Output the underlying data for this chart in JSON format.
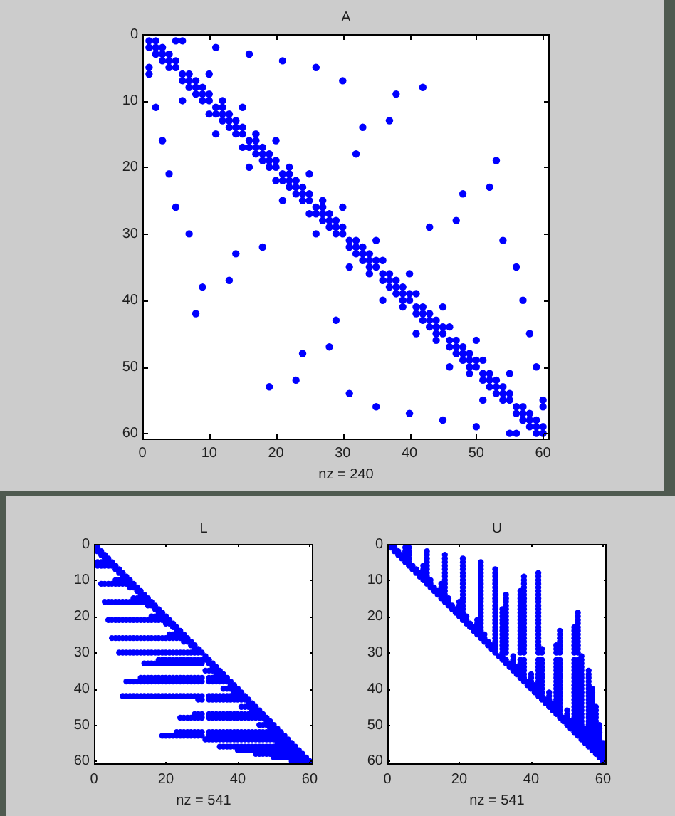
{
  "chart_data": [
    {
      "type": "scatter",
      "title": "A",
      "xlabel": "nz = 240",
      "color": "#0000ff",
      "marker": "circle",
      "xlim": [
        0,
        61
      ],
      "ylim": [
        61,
        0
      ],
      "xticks": [
        0,
        10,
        20,
        30,
        40,
        50,
        60
      ],
      "yticks": [
        0,
        10,
        20,
        30,
        40,
        50,
        60
      ],
      "x": [
        1,
        1,
        1,
        1,
        2,
        2,
        2,
        2,
        3,
        3,
        3,
        3,
        4,
        4,
        4,
        4,
        5,
        5,
        5,
        5,
        6,
        6,
        6,
        6,
        7,
        7,
        7,
        7,
        8,
        8,
        8,
        8,
        9,
        9,
        9,
        9,
        10,
        10,
        10,
        10,
        11,
        11,
        11,
        11,
        12,
        12,
        12,
        12,
        13,
        13,
        13,
        13,
        14,
        14,
        14,
        14,
        15,
        15,
        15,
        15,
        16,
        16,
        16,
        16,
        17,
        17,
        17,
        17,
        18,
        18,
        18,
        18,
        19,
        19,
        19,
        19,
        20,
        20,
        20,
        20,
        21,
        21,
        21,
        21,
        22,
        22,
        22,
        22,
        23,
        23,
        23,
        23,
        24,
        24,
        24,
        24,
        25,
        25,
        25,
        25,
        26,
        26,
        26,
        26,
        27,
        27,
        27,
        27,
        28,
        28,
        28,
        28,
        29,
        29,
        29,
        29,
        30,
        30,
        30,
        30,
        31,
        31,
        31,
        31,
        32,
        32,
        32,
        32,
        33,
        33,
        33,
        33,
        34,
        34,
        34,
        34,
        35,
        35,
        35,
        35,
        36,
        36,
        36,
        36,
        37,
        37,
        37,
        37,
        38,
        38,
        38,
        38,
        39,
        39,
        39,
        39,
        40,
        40,
        40,
        40,
        41,
        41,
        41,
        41,
        42,
        42,
        42,
        42,
        43,
        43,
        43,
        43,
        44,
        44,
        44,
        44,
        45,
        45,
        45,
        45,
        46,
        46,
        46,
        46,
        47,
        47,
        47,
        47,
        48,
        48,
        48,
        48,
        49,
        49,
        49,
        49,
        50,
        50,
        50,
        50,
        51,
        51,
        51,
        51,
        52,
        52,
        52,
        52,
        53,
        53,
        53,
        53,
        54,
        54,
        54,
        54,
        55,
        55,
        55,
        55,
        56,
        56,
        56,
        56,
        57,
        57,
        57,
        57,
        58,
        58,
        58,
        58,
        59,
        59,
        59,
        59,
        60,
        60,
        60,
        60
      ],
      "values": [
        1,
        2,
        5,
        6,
        1,
        2,
        3,
        11,
        2,
        3,
        4,
        16,
        3,
        4,
        5,
        21,
        1,
        4,
        5,
        26,
        1,
        6,
        7,
        10,
        6,
        7,
        8,
        30,
        7,
        8,
        9,
        42,
        8,
        9,
        10,
        38,
        6,
        9,
        10,
        12,
        2,
        11,
        12,
        15,
        10,
        11,
        12,
        13,
        12,
        13,
        14,
        37,
        13,
        14,
        15,
        33,
        11,
        14,
        15,
        17,
        3,
        16,
        17,
        20,
        15,
        16,
        17,
        18,
        17,
        18,
        19,
        32,
        18,
        19,
        20,
        53,
        16,
        19,
        20,
        22,
        4,
        21,
        22,
        25,
        20,
        21,
        22,
        23,
        22,
        23,
        24,
        52,
        23,
        24,
        25,
        48,
        21,
        24,
        25,
        27,
        5,
        26,
        27,
        30,
        25,
        26,
        27,
        28,
        27,
        28,
        29,
        47,
        28,
        29,
        30,
        43,
        7,
        26,
        29,
        30,
        31,
        32,
        35,
        54,
        18,
        31,
        32,
        33,
        14,
        32,
        33,
        34,
        33,
        34,
        35,
        36,
        31,
        34,
        35,
        56,
        34,
        36,
        37,
        40,
        13,
        36,
        37,
        38,
        9,
        37,
        38,
        39,
        38,
        39,
        40,
        41,
        36,
        39,
        40,
        57,
        39,
        41,
        42,
        45,
        8,
        41,
        42,
        43,
        29,
        42,
        43,
        44,
        43,
        44,
        45,
        46,
        41,
        44,
        45,
        58,
        44,
        46,
        47,
        50,
        28,
        46,
        47,
        48,
        24,
        47,
        48,
        49,
        48,
        49,
        50,
        51,
        46,
        49,
        50,
        59,
        49,
        51,
        52,
        55,
        23,
        51,
        52,
        53,
        19,
        52,
        53,
        54,
        31,
        53,
        54,
        55,
        51,
        54,
        55,
        60,
        35,
        56,
        57,
        60,
        40,
        56,
        57,
        58,
        45,
        57,
        58,
        59,
        50,
        58,
        59,
        60,
        55,
        56,
        59,
        60
      ]
    },
    {
      "type": "scatter",
      "title": "L",
      "xlabel": "nz = 541",
      "color": "#0000ff",
      "marker": "circle",
      "xlim": [
        0,
        61
      ],
      "ylim": [
        61,
        0
      ],
      "xticks": [
        0,
        20,
        40,
        60
      ],
      "yticks": [
        0,
        10,
        20,
        30,
        40,
        50,
        60
      ],
      "x": [
        1,
        1,
        1,
        1,
        2,
        2,
        2,
        2,
        2,
        3,
        3,
        3,
        3,
        3,
        3,
        4,
        4,
        4,
        4,
        4,
        4,
        5,
        5,
        5,
        5,
        5,
        5,
        6,
        6,
        6,
        6,
        6,
        6,
        6,
        7,
        7,
        7,
        7,
        7,
        7,
        7,
        7,
        8,
        8,
        8,
        8,
        8,
        8,
        8,
        8,
        8,
        9,
        9,
        9,
        9,
        9,
        9,
        9,
        9,
        9,
        10,
        10,
        10,
        10,
        10,
        10,
        10,
        10,
        10,
        11,
        11,
        11,
        11,
        11,
        11,
        11,
        11,
        11,
        12,
        12,
        12,
        12,
        12,
        12,
        12,
        12,
        12,
        13,
        13,
        13,
        13,
        13,
        13,
        13,
        13,
        13,
        13,
        14,
        14,
        14,
        14,
        14,
        14,
        14,
        14,
        14,
        14,
        15,
        15,
        15,
        15,
        15,
        15,
        15,
        15,
        15,
        15,
        16,
        16,
        16,
        16,
        16,
        16,
        16,
        16,
        16,
        16,
        17,
        17,
        17,
        17,
        17,
        17,
        17,
        17,
        17,
        17,
        18,
        18,
        18,
        18,
        18,
        18,
        18,
        18,
        18,
        18,
        18,
        19,
        19,
        19,
        19,
        19,
        19,
        19,
        19,
        19,
        19,
        19,
        20,
        20,
        20,
        20,
        20,
        20,
        20,
        20,
        20,
        20,
        20,
        21,
        21,
        21,
        21,
        21,
        21,
        21,
        21,
        21,
        21,
        21,
        22,
        22,
        22,
        22,
        22,
        22,
        22,
        22,
        22,
        22,
        22,
        23,
        23,
        23,
        23,
        23,
        23,
        23,
        23,
        23,
        23,
        23,
        23,
        24,
        24,
        24,
        24,
        24,
        24,
        24,
        24,
        24,
        24,
        24,
        24,
        25,
        25,
        25,
        25,
        25,
        25,
        25,
        25,
        25,
        25,
        25,
        25,
        26,
        26,
        26,
        26,
        26,
        26,
        26,
        26,
        26,
        26,
        26,
        27,
        27,
        27,
        27,
        27,
        27,
        27,
        27,
        27,
        27,
        27,
        28,
        28,
        28,
        28,
        28,
        28,
        28,
        28,
        28,
        28,
        28,
        28,
        29,
        29,
        29,
        29,
        29,
        29,
        29,
        29,
        29,
        29,
        29,
        29,
        30,
        30,
        30,
        30,
        30,
        30,
        30,
        30,
        30,
        30,
        30,
        31,
        31,
        31,
        31,
        32,
        32,
        32,
        32,
        32,
        32,
        32,
        32,
        32,
        32,
        32,
        32,
        33,
        33,
        33,
        33,
        33,
        33,
        33,
        33,
        33,
        33,
        33,
        33,
        34,
        34,
        34,
        34,
        34,
        34,
        34,
        34,
        34,
        34,
        34,
        34,
        35,
        35,
        35,
        35,
        35,
        35,
        35,
        35,
        35,
        35,
        35,
        35,
        36,
        36,
        36,
        36,
        36,
        36,
        36,
        36,
        36,
        36,
        36,
        36,
        37,
        37,
        37,
        37,
        37,
        37,
        37,
        37,
        37,
        37,
        37,
        38,
        38,
        38,
        38,
        38,
        38,
        38,
        38,
        38,
        38,
        38,
        39,
        39,
        39,
        39,
        39,
        39,
        39,
        39,
        39,
        39,
        39,
        40,
        40,
        40,
        40,
        40,
        40,
        40,
        40,
        40,
        40,
        40,
        41,
        41,
        41,
        41,
        41,
        41,
        41,
        41,
        41,
        41,
        41,
        42,
        42,
        42,
        42,
        42,
        42,
        42,
        42,
        42,
        42,
        43,
        43,
        43,
        43,
        43,
        43,
        43,
        43,
        43,
        43,
        44,
        44,
        44,
        44,
        44,
        44,
        44,
        44,
        44,
        44,
        45,
        45,
        45,
        45,
        45,
        45,
        45,
        45,
        45,
        45,
        46,
        46,
        46,
        46,
        46,
        46,
        46,
        46,
        46,
        46,
        47,
        47,
        47,
        47,
        47,
        47,
        47,
        47,
        47,
        48,
        48,
        48,
        48,
        48,
        48,
        48,
        48,
        48,
        49,
        49,
        49,
        49,
        49,
        49,
        49,
        49,
        49,
        50,
        50,
        50,
        50,
        50,
        50,
        50,
        50,
        50,
        51,
        51,
        51,
        51,
        51,
        51,
        51,
        51,
        51,
        52,
        52,
        52,
        52,
        52,
        52,
        52,
        52,
        53,
        53,
        53,
        53,
        53,
        53,
        53,
        54,
        54,
        54,
        54,
        54,
        54,
        55,
        55,
        55,
        55,
        55,
        55,
        56,
        56,
        56,
        56,
        56,
        57,
        57,
        57,
        57,
        58,
        58,
        58,
        59,
        59,
        60
      ],
      "values": [
        1,
        2,
        5,
        6,
        2,
        3,
        5,
        6,
        11,
        3,
        4,
        5,
        6,
        11,
        16,
        4,
        5,
        6,
        11,
        16,
        21,
        5,
        6,
        11,
        16,
        21,
        26,
        6,
        7,
        10,
        11,
        16,
        21,
        26,
        7,
        8,
        10,
        11,
        16,
        21,
        26,
        30,
        8,
        9,
        10,
        11,
        16,
        21,
        26,
        30,
        42,
        9,
        10,
        11,
        16,
        21,
        26,
        30,
        38,
        42,
        10,
        11,
        12,
        16,
        21,
        26,
        30,
        38,
        42,
        11,
        12,
        15,
        16,
        21,
        26,
        30,
        38,
        42,
        12,
        13,
        15,
        16,
        21,
        26,
        30,
        38,
        42,
        13,
        14,
        15,
        16,
        21,
        26,
        30,
        37,
        38,
        42,
        14,
        15,
        16,
        21,
        26,
        30,
        33,
        37,
        38,
        42,
        15,
        16,
        17,
        21,
        26,
        30,
        33,
        37,
        38,
        42,
        16,
        17,
        20,
        21,
        26,
        30,
        33,
        37,
        38,
        42,
        17,
        18,
        20,
        21,
        26,
        30,
        33,
        37,
        38,
        42,
        18,
        19,
        20,
        21,
        26,
        30,
        32,
        33,
        37,
        38,
        42,
        19,
        20,
        21,
        26,
        30,
        32,
        33,
        37,
        38,
        42,
        53,
        20,
        21,
        22,
        26,
        30,
        32,
        33,
        37,
        38,
        42,
        53,
        21,
        22,
        25,
        26,
        30,
        32,
        33,
        37,
        38,
        42,
        53,
        22,
        23,
        25,
        26,
        30,
        32,
        33,
        37,
        38,
        42,
        53,
        23,
        24,
        25,
        26,
        30,
        32,
        33,
        37,
        38,
        42,
        52,
        53,
        24,
        25,
        26,
        30,
        32,
        33,
        37,
        38,
        42,
        48,
        52,
        53,
        25,
        26,
        27,
        30,
        32,
        33,
        37,
        38,
        42,
        48,
        52,
        53,
        26,
        27,
        30,
        32,
        33,
        37,
        38,
        42,
        48,
        52,
        53,
        27,
        28,
        30,
        32,
        33,
        37,
        38,
        42,
        48,
        52,
        53,
        28,
        29,
        30,
        32,
        33,
        37,
        38,
        42,
        47,
        48,
        52,
        53,
        29,
        30,
        32,
        33,
        37,
        38,
        42,
        43,
        47,
        48,
        52,
        53,
        30,
        32,
        33,
        37,
        38,
        42,
        43,
        47,
        48,
        52,
        53,
        31,
        32,
        35,
        54,
        32,
        33,
        35,
        37,
        38,
        42,
        43,
        47,
        48,
        52,
        53,
        54,
        33,
        34,
        35,
        37,
        38,
        42,
        43,
        47,
        48,
        52,
        53,
        54,
        34,
        35,
        36,
        37,
        38,
        42,
        43,
        47,
        48,
        52,
        53,
        54,
        35,
        36,
        37,
        38,
        42,
        43,
        47,
        48,
        52,
        53,
        54,
        56,
        36,
        37,
        38,
        40,
        42,
        43,
        47,
        48,
        52,
        53,
        54,
        56,
        37,
        38,
        40,
        42,
        43,
        47,
        48,
        52,
        53,
        54,
        56,
        38,
        39,
        40,
        42,
        43,
        47,
        48,
        52,
        53,
        54,
        56,
        39,
        40,
        41,
        42,
        43,
        47,
        48,
        52,
        53,
        54,
        56,
        40,
        41,
        42,
        43,
        47,
        48,
        52,
        53,
        54,
        56,
        57,
        41,
        42,
        43,
        45,
        47,
        48,
        52,
        53,
        54,
        56,
        57,
        42,
        43,
        45,
        47,
        48,
        52,
        53,
        54,
        56,
        57,
        43,
        44,
        45,
        47,
        48,
        52,
        53,
        54,
        56,
        57,
        44,
        45,
        46,
        47,
        48,
        52,
        53,
        54,
        56,
        57,
        45,
        46,
        47,
        48,
        52,
        53,
        54,
        56,
        57,
        58,
        46,
        47,
        48,
        50,
        52,
        53,
        54,
        56,
        57,
        58,
        47,
        48,
        50,
        52,
        53,
        54,
        56,
        57,
        58,
        48,
        49,
        50,
        52,
        53,
        54,
        56,
        57,
        58,
        49,
        50,
        51,
        52,
        53,
        54,
        56,
        57,
        58,
        50,
        51,
        52,
        53,
        54,
        56,
        57,
        58,
        59,
        51,
        52,
        53,
        54,
        55,
        56,
        57,
        58,
        59,
        52,
        53,
        54,
        55,
        56,
        57,
        58,
        59,
        53,
        54,
        55,
        56,
        57,
        58,
        59,
        54,
        55,
        56,
        57,
        58,
        59,
        55,
        56,
        57,
        58,
        59,
        60,
        56,
        57,
        58,
        59,
        60,
        57,
        58,
        59,
        60,
        58,
        59,
        60,
        59,
        60,
        60
      ]
    },
    {
      "type": "scatter",
      "title": "U",
      "xlabel": "nz = 541",
      "color": "#0000ff",
      "marker": "circle",
      "xlim": [
        0,
        61
      ],
      "ylim": [
        61,
        0
      ],
      "xticks": [
        0,
        20,
        40,
        60
      ],
      "yticks": [
        0,
        10,
        20,
        30,
        40,
        50,
        60
      ],
      "x": [
        1,
        2,
        5,
        6,
        2,
        3,
        5,
        6,
        11,
        3,
        4,
        5,
        6,
        11,
        16,
        4,
        5,
        6,
        11,
        16,
        21,
        5,
        6,
        11,
        16,
        21,
        26,
        6,
        7,
        10,
        11,
        16,
        21,
        26,
        7,
        8,
        10,
        11,
        16,
        21,
        26,
        30,
        8,
        9,
        10,
        11,
        16,
        21,
        26,
        30,
        42,
        9,
        10,
        11,
        16,
        21,
        26,
        30,
        38,
        42,
        10,
        11,
        12,
        16,
        21,
        26,
        30,
        38,
        42,
        11,
        12,
        15,
        16,
        21,
        26,
        30,
        38,
        42,
        12,
        13,
        15,
        16,
        21,
        26,
        30,
        38,
        42,
        13,
        14,
        15,
        16,
        21,
        26,
        30,
        37,
        38,
        42,
        14,
        15,
        16,
        21,
        26,
        30,
        33,
        37,
        38,
        42,
        15,
        16,
        17,
        21,
        26,
        30,
        33,
        37,
        38,
        42,
        16,
        17,
        20,
        21,
        26,
        30,
        33,
        37,
        38,
        42,
        17,
        18,
        20,
        21,
        26,
        30,
        33,
        37,
        38,
        42,
        18,
        19,
        20,
        21,
        26,
        30,
        32,
        33,
        37,
        38,
        42,
        19,
        20,
        21,
        26,
        30,
        32,
        33,
        37,
        38,
        42,
        53,
        20,
        21,
        22,
        26,
        30,
        32,
        33,
        37,
        38,
        42,
        53,
        21,
        22,
        25,
        26,
        30,
        32,
        33,
        37,
        38,
        42,
        53,
        22,
        23,
        25,
        26,
        30,
        32,
        33,
        37,
        38,
        42,
        53,
        23,
        24,
        25,
        26,
        30,
        32,
        33,
        37,
        38,
        42,
        52,
        53,
        24,
        25,
        26,
        30,
        32,
        33,
        37,
        38,
        42,
        48,
        52,
        53,
        25,
        26,
        27,
        30,
        32,
        33,
        37,
        38,
        42,
        48,
        52,
        53,
        26,
        27,
        30,
        32,
        33,
        37,
        38,
        42,
        48,
        52,
        53,
        27,
        28,
        30,
        32,
        33,
        37,
        38,
        42,
        48,
        52,
        53,
        28,
        29,
        30,
        32,
        33,
        37,
        38,
        42,
        47,
        48,
        52,
        53,
        29,
        30,
        32,
        33,
        37,
        38,
        42,
        43,
        47,
        48,
        52,
        53,
        30,
        32,
        33,
        37,
        38,
        42,
        43,
        47,
        48,
        52,
        53,
        31,
        32,
        35,
        54,
        32,
        33,
        35,
        37,
        38,
        42,
        43,
        47,
        48,
        52,
        53,
        54,
        33,
        34,
        35,
        37,
        38,
        42,
        43,
        47,
        48,
        52,
        53,
        54,
        34,
        35,
        36,
        37,
        38,
        42,
        43,
        47,
        48,
        52,
        53,
        54,
        35,
        36,
        37,
        38,
        42,
        43,
        47,
        48,
        52,
        53,
        54,
        56,
        36,
        37,
        38,
        40,
        42,
        43,
        47,
        48,
        52,
        53,
        54,
        56,
        37,
        38,
        40,
        42,
        43,
        47,
        48,
        52,
        53,
        54,
        56,
        38,
        39,
        40,
        42,
        43,
        47,
        48,
        52,
        53,
        54,
        56,
        39,
        40,
        41,
        42,
        43,
        47,
        48,
        52,
        53,
        54,
        56,
        40,
        41,
        42,
        43,
        47,
        48,
        52,
        53,
        54,
        56,
        57,
        41,
        42,
        43,
        45,
        47,
        48,
        52,
        53,
        54,
        56,
        57,
        42,
        43,
        45,
        47,
        48,
        52,
        53,
        54,
        56,
        57,
        43,
        44,
        45,
        47,
        48,
        52,
        53,
        54,
        56,
        57,
        44,
        45,
        46,
        47,
        48,
        52,
        53,
        54,
        56,
        57,
        45,
        46,
        47,
        48,
        52,
        53,
        54,
        56,
        57,
        58,
        46,
        47,
        48,
        50,
        52,
        53,
        54,
        56,
        57,
        58,
        47,
        48,
        50,
        52,
        53,
        54,
        56,
        57,
        58,
        48,
        49,
        50,
        52,
        53,
        54,
        56,
        57,
        58,
        49,
        50,
        51,
        52,
        53,
        54,
        56,
        57,
        58,
        50,
        51,
        52,
        53,
        54,
        56,
        57,
        58,
        59,
        51,
        52,
        53,
        54,
        55,
        56,
        57,
        58,
        59,
        52,
        53,
        54,
        55,
        56,
        57,
        58,
        59,
        53,
        54,
        55,
        56,
        57,
        58,
        59,
        54,
        55,
        56,
        57,
        58,
        59,
        55,
        56,
        57,
        58,
        59,
        60,
        56,
        57,
        58,
        59,
        60,
        57,
        58,
        59,
        60,
        58,
        59,
        60,
        59,
        60,
        60
      ],
      "values": [
        1,
        1,
        1,
        1,
        2,
        2,
        2,
        2,
        2,
        3,
        3,
        3,
        3,
        3,
        3,
        4,
        4,
        4,
        4,
        4,
        4,
        5,
        5,
        5,
        5,
        5,
        5,
        6,
        6,
        6,
        6,
        6,
        6,
        6,
        7,
        7,
        7,
        7,
        7,
        7,
        7,
        7,
        8,
        8,
        8,
        8,
        8,
        8,
        8,
        8,
        8,
        9,
        9,
        9,
        9,
        9,
        9,
        9,
        9,
        9,
        10,
        10,
        10,
        10,
        10,
        10,
        10,
        10,
        10,
        11,
        11,
        11,
        11,
        11,
        11,
        11,
        11,
        11,
        12,
        12,
        12,
        12,
        12,
        12,
        12,
        12,
        12,
        13,
        13,
        13,
        13,
        13,
        13,
        13,
        13,
        13,
        13,
        14,
        14,
        14,
        14,
        14,
        14,
        14,
        14,
        14,
        14,
        15,
        15,
        15,
        15,
        15,
        15,
        15,
        15,
        15,
        15,
        16,
        16,
        16,
        16,
        16,
        16,
        16,
        16,
        16,
        16,
        17,
        17,
        17,
        17,
        17,
        17,
        17,
        17,
        17,
        17,
        18,
        18,
        18,
        18,
        18,
        18,
        18,
        18,
        18,
        18,
        18,
        19,
        19,
        19,
        19,
        19,
        19,
        19,
        19,
        19,
        19,
        19,
        20,
        20,
        20,
        20,
        20,
        20,
        20,
        20,
        20,
        20,
        20,
        21,
        21,
        21,
        21,
        21,
        21,
        21,
        21,
        21,
        21,
        21,
        22,
        22,
        22,
        22,
        22,
        22,
        22,
        22,
        22,
        22,
        22,
        23,
        23,
        23,
        23,
        23,
        23,
        23,
        23,
        23,
        23,
        23,
        23,
        24,
        24,
        24,
        24,
        24,
        24,
        24,
        24,
        24,
        24,
        24,
        24,
        25,
        25,
        25,
        25,
        25,
        25,
        25,
        25,
        25,
        25,
        25,
        25,
        26,
        26,
        26,
        26,
        26,
        26,
        26,
        26,
        26,
        26,
        26,
        27,
        27,
        27,
        27,
        27,
        27,
        27,
        27,
        27,
        27,
        27,
        28,
        28,
        28,
        28,
        28,
        28,
        28,
        28,
        28,
        28,
        28,
        28,
        29,
        29,
        29,
        29,
        29,
        29,
        29,
        29,
        29,
        29,
        29,
        29,
        30,
        30,
        30,
        30,
        30,
        30,
        30,
        30,
        30,
        30,
        30,
        31,
        31,
        31,
        31,
        32,
        32,
        32,
        32,
        32,
        32,
        32,
        32,
        32,
        32,
        32,
        32,
        33,
        33,
        33,
        33,
        33,
        33,
        33,
        33,
        33,
        33,
        33,
        33,
        34,
        34,
        34,
        34,
        34,
        34,
        34,
        34,
        34,
        34,
        34,
        34,
        35,
        35,
        35,
        35,
        35,
        35,
        35,
        35,
        35,
        35,
        35,
        35,
        36,
        36,
        36,
        36,
        36,
        36,
        36,
        36,
        36,
        36,
        36,
        36,
        37,
        37,
        37,
        37,
        37,
        37,
        37,
        37,
        37,
        37,
        37,
        38,
        38,
        38,
        38,
        38,
        38,
        38,
        38,
        38,
        38,
        38,
        39,
        39,
        39,
        39,
        39,
        39,
        39,
        39,
        39,
        39,
        39,
        40,
        40,
        40,
        40,
        40,
        40,
        40,
        40,
        40,
        40,
        40,
        41,
        41,
        41,
        41,
        41,
        41,
        41,
        41,
        41,
        41,
        41,
        42,
        42,
        42,
        42,
        42,
        42,
        42,
        42,
        42,
        42,
        43,
        43,
        43,
        43,
        43,
        43,
        43,
        43,
        43,
        43,
        44,
        44,
        44,
        44,
        44,
        44,
        44,
        44,
        44,
        44,
        45,
        45,
        45,
        45,
        45,
        45,
        45,
        45,
        45,
        45,
        46,
        46,
        46,
        46,
        46,
        46,
        46,
        46,
        46,
        46,
        47,
        47,
        47,
        47,
        47,
        47,
        47,
        47,
        47,
        48,
        48,
        48,
        48,
        48,
        48,
        48,
        48,
        48,
        49,
        49,
        49,
        49,
        49,
        49,
        49,
        49,
        49,
        50,
        50,
        50,
        50,
        50,
        50,
        50,
        50,
        50,
        51,
        51,
        51,
        51,
        51,
        51,
        51,
        51,
        51,
        52,
        52,
        52,
        52,
        52,
        52,
        52,
        52,
        53,
        53,
        53,
        53,
        53,
        53,
        53,
        54,
        54,
        54,
        54,
        54,
        54,
        55,
        55,
        55,
        55,
        55,
        55,
        56,
        56,
        56,
        56,
        56,
        57,
        57,
        57,
        57,
        58,
        58,
        58,
        59,
        59,
        60
      ]
    }
  ]
}
